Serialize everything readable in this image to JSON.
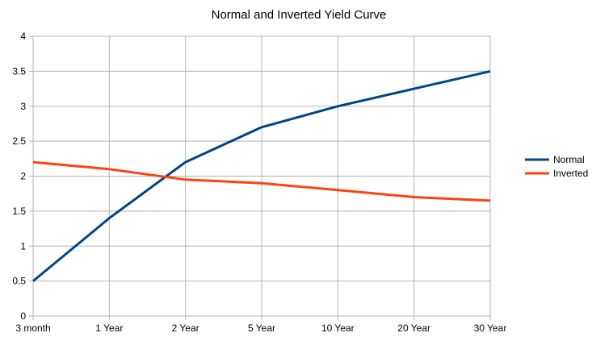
{
  "chart_data": {
    "type": "line",
    "title": "Normal and Inverted Yield Curve",
    "xlabel": "",
    "ylabel": "",
    "categories": [
      "3 month",
      "1 Year",
      "2 Year",
      "5 Year",
      "10 Year",
      "20 Year",
      "30 Year"
    ],
    "y_ticks": [
      "0",
      "0.5",
      "1",
      "1.5",
      "2",
      "2.5",
      "3",
      "3.5",
      "4"
    ],
    "ylim": [
      0,
      4
    ],
    "grid": true,
    "legend_position": "right",
    "series": [
      {
        "name": "Normal",
        "color": "#004586",
        "values": [
          0.5,
          1.4,
          2.2,
          2.7,
          3.0,
          3.25,
          3.5
        ]
      },
      {
        "name": "Inverted",
        "color": "#ff420e",
        "values": [
          2.2,
          2.1,
          1.95,
          1.9,
          1.8,
          1.7,
          1.65
        ]
      }
    ]
  }
}
